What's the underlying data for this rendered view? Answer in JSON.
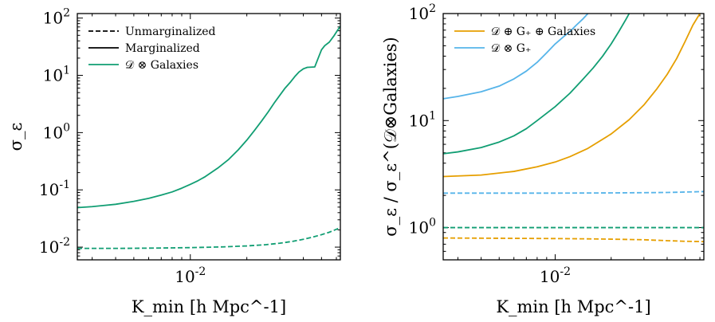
{
  "chart_data": [
    {
      "type": "line",
      "xscale": "log",
      "yscale": "log",
      "xlim": [
        0.0025,
        0.063
      ],
      "ylim": [
        0.006,
        120
      ],
      "xlabel": "K_min [h Mpc^-1]",
      "ylabel": "σ_ε",
      "x_tick_labels": [
        {
          "value": 0.01,
          "label": "10^-2"
        }
      ],
      "y_tick_labels": [
        {
          "value": 0.01,
          "label": "10^-2"
        },
        {
          "value": 0.1,
          "label": "10^-1"
        },
        {
          "value": 1,
          "label": "10^0"
        },
        {
          "value": 10,
          "label": "10^1"
        },
        {
          "value": 100,
          "label": "10^2"
        }
      ],
      "legend": {
        "location": "top-left",
        "entries": [
          {
            "label": "Unmarginalized",
            "color": "#000000",
            "dash": true
          },
          {
            "label": "Marginalized",
            "color": "#000000",
            "dash": false
          },
          {
            "label": "𝒟 ⊗ Galaxies",
            "color": "#119e73",
            "dash": false
          }
        ]
      },
      "series": [
        {
          "name": "𝒟 ⊗ Galaxies marginalized",
          "color": "#119e73",
          "dash": false,
          "x": [
            0.0025,
            0.003,
            0.004,
            0.005,
            0.006,
            0.007,
            0.008,
            0.009,
            0.01,
            0.011,
            0.012,
            0.014,
            0.016,
            0.018,
            0.02,
            0.022,
            0.024,
            0.026,
            0.028,
            0.03,
            0.032,
            0.034,
            0.036,
            0.038,
            0.04,
            0.042,
            0.044,
            0.046,
            0.048,
            0.05,
            0.052,
            0.055,
            0.058,
            0.061,
            0.063
          ],
          "y": [
            0.049,
            0.051,
            0.056,
            0.063,
            0.071,
            0.081,
            0.092,
            0.107,
            0.125,
            0.145,
            0.17,
            0.24,
            0.34,
            0.5,
            0.74,
            1.1,
            1.6,
            2.3,
            3.3,
            4.5,
            6.0,
            7.5,
            9.5,
            11.5,
            13.0,
            13.8,
            13.9,
            14.0,
            20.0,
            28.0,
            33.0,
            38.0,
            48.0,
            62.0,
            72.0
          ]
        },
        {
          "name": "𝒟 ⊗ Galaxies unmarginalized",
          "color": "#119e73",
          "dash": true,
          "x": [
            0.0025,
            0.004,
            0.006,
            0.008,
            0.01,
            0.015,
            0.02,
            0.025,
            0.03,
            0.035,
            0.04,
            0.045,
            0.05,
            0.055,
            0.06,
            0.063
          ],
          "y": [
            0.0095,
            0.0095,
            0.0096,
            0.0097,
            0.0098,
            0.0101,
            0.0105,
            0.011,
            0.0117,
            0.0126,
            0.0137,
            0.015,
            0.0165,
            0.0182,
            0.0205,
            0.022
          ]
        }
      ]
    },
    {
      "type": "line",
      "xscale": "log",
      "yscale": "log",
      "xlim": [
        0.0025,
        0.063
      ],
      "ylim": [
        0.5,
        100
      ],
      "xlabel": "K_min [h Mpc^-1]",
      "ylabel": "σ_ε / σ_ε^(𝒟⊗Galaxies)",
      "x_tick_labels": [
        {
          "value": 0.01,
          "label": "10^-2"
        }
      ],
      "y_tick_labels": [
        {
          "value": 1,
          "label": "10^0"
        },
        {
          "value": 10,
          "label": "10^1"
        },
        {
          "value": 100,
          "label": "10^2"
        }
      ],
      "legend": {
        "location": "top-left",
        "entries": [
          {
            "label": "𝒟 ⊕ G₊ ⊕ Galaxies",
            "color": "#e69f00",
            "dash": false
          },
          {
            "label": "𝒟 ⊗ G₊",
            "color": "#56b4e9",
            "dash": false
          }
        ]
      },
      "series": [
        {
          "name": "𝒟 ⊗ G₊ marginalized",
          "color": "#56b4e9",
          "dash": false,
          "x": [
            0.0025,
            0.003,
            0.004,
            0.005,
            0.006,
            0.007,
            0.008,
            0.009,
            0.01,
            0.011,
            0.012,
            0.013,
            0.014,
            0.015
          ],
          "y": [
            16.0,
            16.8,
            18.6,
            21.0,
            24.5,
            29.0,
            35.0,
            43.0,
            52.0,
            60.0,
            68.0,
            78.0,
            88.0,
            100.0
          ]
        },
        {
          "name": "Green marginalized",
          "color": "#119e73",
          "dash": false,
          "x": [
            0.0025,
            0.003,
            0.004,
            0.005,
            0.006,
            0.007,
            0.008,
            0.01,
            0.012,
            0.014,
            0.016,
            0.018,
            0.02,
            0.022,
            0.024,
            0.025
          ],
          "y": [
            4.9,
            5.1,
            5.6,
            6.3,
            7.2,
            8.4,
            10.0,
            13.5,
            18.0,
            24.0,
            31.0,
            40.0,
            52.0,
            68.0,
            88.0,
            100.0
          ]
        },
        {
          "name": "𝒟 ⊕ G₊ ⊕ Galaxies marginalized",
          "color": "#e69f00",
          "dash": false,
          "x": [
            0.0025,
            0.004,
            0.006,
            0.008,
            0.01,
            0.012,
            0.015,
            0.02,
            0.025,
            0.03,
            0.035,
            0.04,
            0.045,
            0.05,
            0.055,
            0.06
          ],
          "y": [
            3.0,
            3.1,
            3.35,
            3.7,
            4.1,
            4.6,
            5.5,
            7.5,
            10.2,
            14.0,
            19.5,
            27.0,
            38.0,
            55.0,
            78.0,
            100.0
          ]
        },
        {
          "name": "𝒟 ⊗ G₊ unmarginalized",
          "color": "#56b4e9",
          "dash": true,
          "x": [
            0.0025,
            0.005,
            0.01,
            0.02,
            0.03,
            0.04,
            0.05,
            0.063
          ],
          "y": [
            2.1,
            2.1,
            2.1,
            2.11,
            2.12,
            2.13,
            2.15,
            2.17
          ]
        },
        {
          "name": "Green unmarginalized",
          "color": "#119e73",
          "dash": true,
          "x": [
            0.0025,
            0.005,
            0.01,
            0.02,
            0.04,
            0.063
          ],
          "y": [
            1.0,
            1.0,
            1.0,
            1.0,
            1.0,
            1.0
          ]
        },
        {
          "name": "𝒟 ⊕ G₊ ⊕ Galaxies unmarginalized",
          "color": "#e69f00",
          "dash": true,
          "x": [
            0.0025,
            0.005,
            0.01,
            0.015,
            0.02,
            0.03,
            0.04,
            0.05,
            0.063
          ],
          "y": [
            0.8,
            0.795,
            0.79,
            0.785,
            0.78,
            0.77,
            0.755,
            0.745,
            0.74
          ]
        }
      ]
    }
  ]
}
